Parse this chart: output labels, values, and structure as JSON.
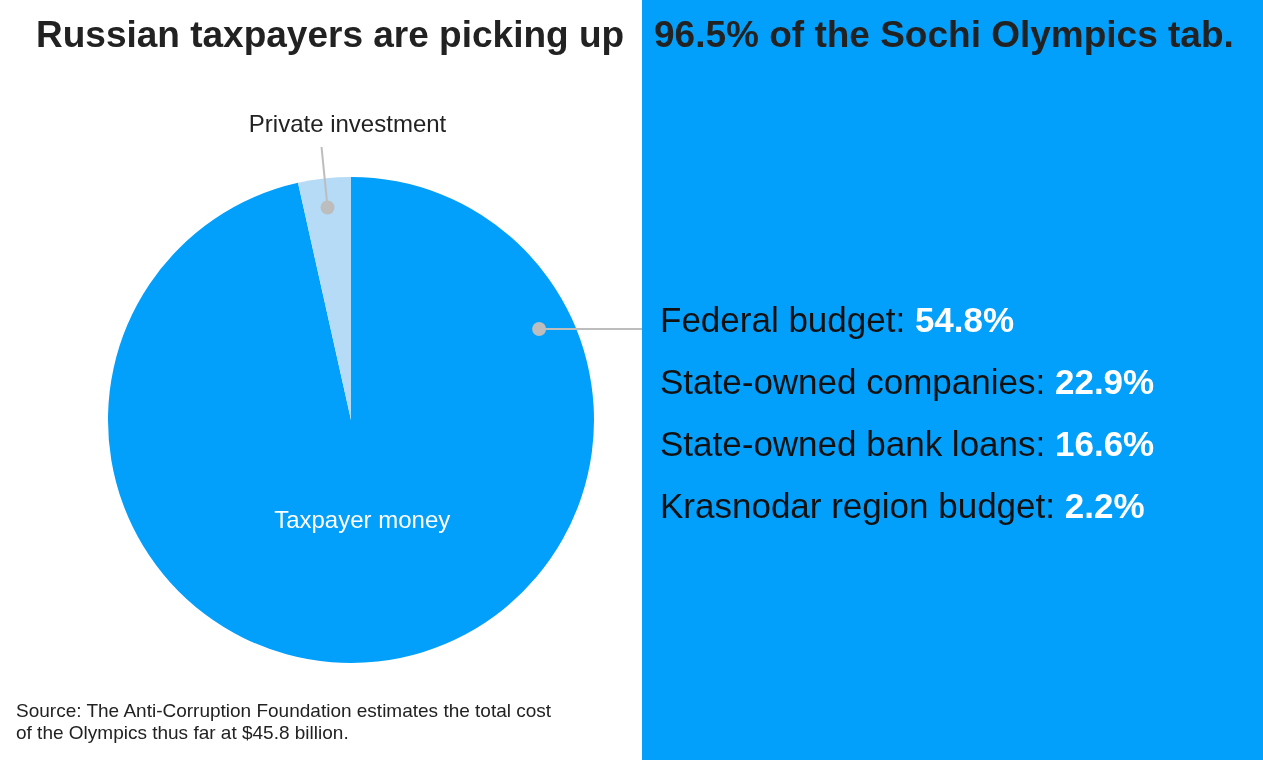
{
  "chart_data": {
    "type": "pie",
    "title": "Russian taxpayers are picking up 96.5% of the Sochi Olympics tab.",
    "categories": [
      "Taxpayer money",
      "Private investment"
    ],
    "values": [
      96.5,
      3.5
    ],
    "colors": [
      "#029ffb",
      "#b5dbf6"
    ],
    "legend": false,
    "annotations": [
      "Federal budget: 54.8%",
      "State-owned companies: 22.9%",
      "State-owned bank loans: 16.6%",
      "Krasnodar region budget: 2.2%",
      "Source: The Anti-Corruption Foundation estimates the total cost of the Olympics thus far at $45.8 billion."
    ]
  }
}
